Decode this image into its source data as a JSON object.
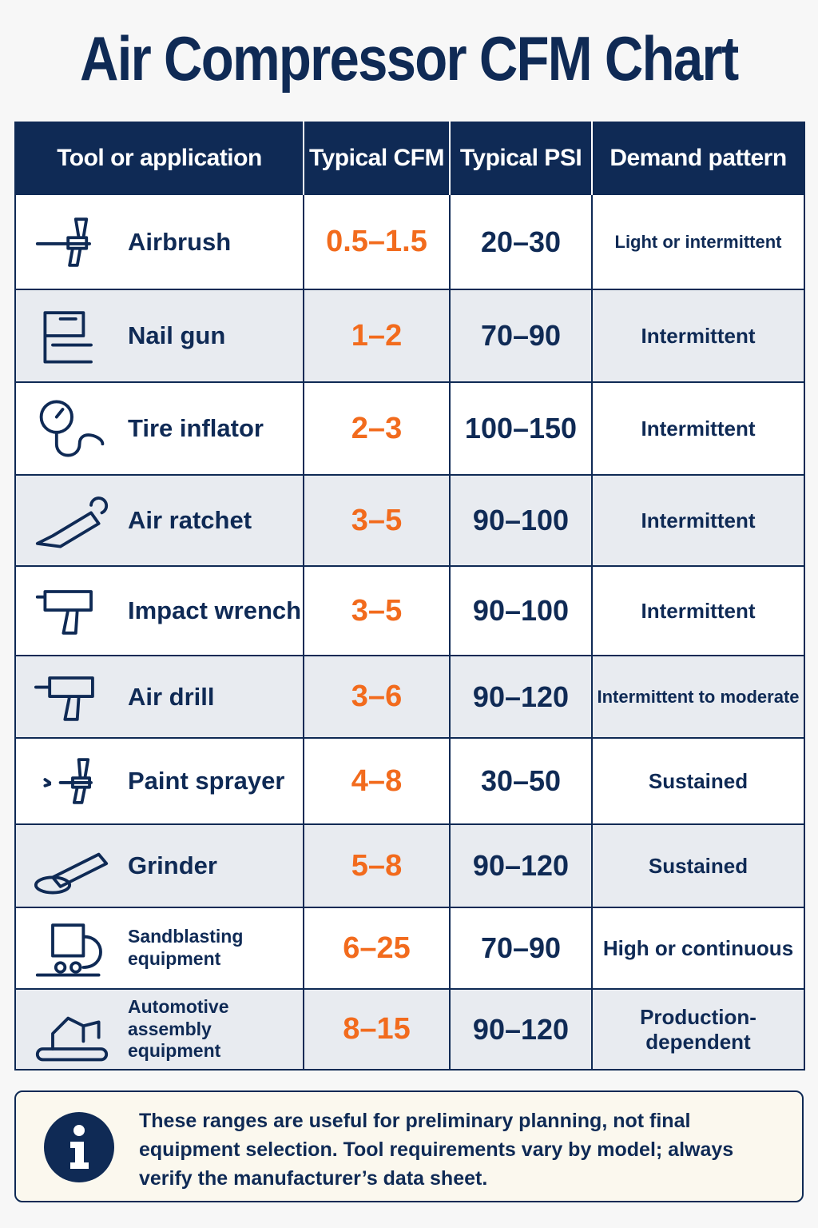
{
  "title": "Air Compressor CFM Chart",
  "table": {
    "headers": [
      "Tool or application",
      "Typical CFM",
      "Typical PSI",
      "Demand pattern"
    ],
    "rows": [
      [
        "Airbrush",
        "0.5–1.5",
        "20–30",
        "Light or intermittent"
      ],
      [
        "Nail gun",
        "1–2",
        "70–90",
        "Intermittent"
      ],
      [
        "Tire inflator",
        "2–3",
        "100–150",
        "Intermittent"
      ],
      [
        "Air ratchet",
        "3–5",
        "90–100",
        "Intermittent"
      ],
      [
        "Impact wrench",
        "3–5",
        "90–100",
        "Intermittent"
      ],
      [
        "Air drill",
        "3–6",
        "90–120",
        "Intermittent to moderate"
      ],
      [
        "Paint sprayer",
        "4–8",
        "30–50",
        "Sustained"
      ],
      [
        "Grinder",
        "5–8",
        "90–120",
        "Sustained"
      ],
      [
        "Sandblasting equipment",
        "6–25",
        "70–90",
        "High or continuous"
      ],
      [
        "Automotive assembly equipment",
        "8–15",
        "90–120",
        "Production-dependent"
      ]
    ]
  },
  "note": "These ranges are useful for preliminary planning, not final equipment selection. Tool requirements vary by model; always verify the manufacturer’s data sheet."
}
